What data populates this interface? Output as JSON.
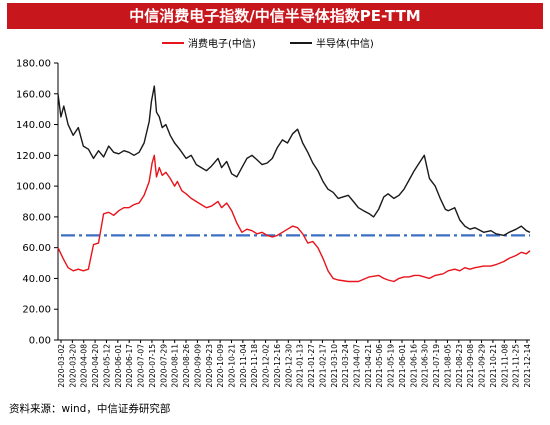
{
  "header": {
    "title": "中信消费电子指数/中信半导体指数PE-TTM"
  },
  "source_note": "资料来源：wind，中信证券研究部",
  "colors": {
    "title_bg": "#c8161d",
    "consumer_electronics": "#e8141c",
    "semiconductor": "#1a1a1a",
    "reference_line": "#3b6fc4"
  },
  "chart_data": {
    "type": "line",
    "title": "中信消费电子指数/中信半导体指数PE-TTM",
    "ylim": [
      0,
      180
    ],
    "yticks": [
      "0.00",
      "20.00",
      "40.00",
      "60.00",
      "80.00",
      "100.00",
      "120.00",
      "140.00",
      "160.00",
      "180.00"
    ],
    "xlim": [
      "2020-03-02",
      "2021-12-14"
    ],
    "x_tick_labels": [
      "2020-03-02",
      "2020-03-20",
      "2020-04-08",
      "2020-04-20",
      "2020-05-12",
      "2020-06-01",
      "2020-06-17",
      "2020-07-07",
      "2020-07-15",
      "2020-07-29",
      "2020-08-11",
      "2020-08-26",
      "2020-09-09",
      "2020-09-23",
      "2020-10-09",
      "2020-10-21",
      "2020-11-04",
      "2020-11-18",
      "2020-12-02",
      "2020-12-16",
      "2020-12-30",
      "2021-01-13",
      "2021-01-27",
      "2021-02-17",
      "2021-03-10",
      "2021-03-24",
      "2021-04-07",
      "2021-04-21",
      "2021-05-06",
      "2021-05-19",
      "2021-06-01",
      "2021-06-16",
      "2021-06-30",
      "2021-07-19",
      "2021-08-05",
      "2021-08-23",
      "2021-09-08",
      "2021-09-29",
      "2021-10-21",
      "2021-11-08",
      "2021-11-25",
      "2021-12-14"
    ],
    "legend": {
      "placement": "top",
      "entries": [
        "消费电子(中信)",
        "半导体(中信)"
      ]
    },
    "grid": false,
    "series": [
      {
        "name": "消费电子(中信)",
        "color": "#e8141c",
        "points": [
          [
            "2020-03-02",
            60
          ],
          [
            "2020-03-09",
            53
          ],
          [
            "2020-03-16",
            47
          ],
          [
            "2020-03-23",
            45
          ],
          [
            "2020-03-30",
            46
          ],
          [
            "2020-04-06",
            45
          ],
          [
            "2020-04-13",
            46
          ],
          [
            "2020-04-20",
            62
          ],
          [
            "2020-04-27",
            63
          ],
          [
            "2020-05-04",
            82
          ],
          [
            "2020-05-11",
            83
          ],
          [
            "2020-05-18",
            81
          ],
          [
            "2020-05-25",
            84
          ],
          [
            "2020-06-01",
            86
          ],
          [
            "2020-06-08",
            86
          ],
          [
            "2020-06-15",
            88
          ],
          [
            "2020-06-22",
            89
          ],
          [
            "2020-06-29",
            94
          ],
          [
            "2020-07-06",
            103
          ],
          [
            "2020-07-10",
            115
          ],
          [
            "2020-07-13",
            120
          ],
          [
            "2020-07-16",
            106
          ],
          [
            "2020-07-20",
            112
          ],
          [
            "2020-07-24",
            107
          ],
          [
            "2020-07-29",
            109
          ],
          [
            "2020-08-04",
            105
          ],
          [
            "2020-08-10",
            100
          ],
          [
            "2020-08-14",
            103
          ],
          [
            "2020-08-20",
            97
          ],
          [
            "2020-08-26",
            95
          ],
          [
            "2020-09-02",
            92
          ],
          [
            "2020-09-09",
            90
          ],
          [
            "2020-09-16",
            88
          ],
          [
            "2020-09-23",
            86
          ],
          [
            "2020-09-30",
            87
          ],
          [
            "2020-10-09",
            90
          ],
          [
            "2020-10-14",
            86
          ],
          [
            "2020-10-21",
            89
          ],
          [
            "2020-10-28",
            84
          ],
          [
            "2020-11-04",
            76
          ],
          [
            "2020-11-11",
            70
          ],
          [
            "2020-11-18",
            72
          ],
          [
            "2020-11-25",
            71
          ],
          [
            "2020-12-02",
            69
          ],
          [
            "2020-12-09",
            70
          ],
          [
            "2020-12-16",
            68
          ],
          [
            "2020-12-23",
            67
          ],
          [
            "2020-12-30",
            68
          ],
          [
            "2021-01-06",
            70
          ],
          [
            "2021-01-13",
            72
          ],
          [
            "2021-01-20",
            74
          ],
          [
            "2021-01-27",
            73
          ],
          [
            "2021-02-03",
            69
          ],
          [
            "2021-02-10",
            63
          ],
          [
            "2021-02-17",
            64
          ],
          [
            "2021-02-24",
            60
          ],
          [
            "2021-03-03",
            53
          ],
          [
            "2021-03-10",
            45
          ],
          [
            "2021-03-17",
            40
          ],
          [
            "2021-03-24",
            39
          ],
          [
            "2021-04-07",
            38
          ],
          [
            "2021-04-21",
            38
          ],
          [
            "2021-05-06",
            41
          ],
          [
            "2021-05-19",
            42
          ],
          [
            "2021-05-26",
            40
          ],
          [
            "2021-06-01",
            39
          ],
          [
            "2021-06-09",
            38
          ],
          [
            "2021-06-16",
            40
          ],
          [
            "2021-06-23",
            41
          ],
          [
            "2021-06-30",
            41
          ],
          [
            "2021-07-07",
            42
          ],
          [
            "2021-07-14",
            42
          ],
          [
            "2021-07-21",
            41
          ],
          [
            "2021-07-28",
            40
          ],
          [
            "2021-08-05",
            42
          ],
          [
            "2021-08-16",
            43
          ],
          [
            "2021-08-23",
            45
          ],
          [
            "2021-09-01",
            46
          ],
          [
            "2021-09-08",
            45
          ],
          [
            "2021-09-15",
            47
          ],
          [
            "2021-09-22",
            46
          ],
          [
            "2021-09-29",
            47
          ],
          [
            "2021-10-11",
            48
          ],
          [
            "2021-10-21",
            48
          ],
          [
            "2021-10-28",
            49
          ],
          [
            "2021-11-08",
            51
          ],
          [
            "2021-11-15",
            53
          ],
          [
            "2021-11-25",
            55
          ],
          [
            "2021-12-02",
            57
          ],
          [
            "2021-12-09",
            56
          ],
          [
            "2021-12-14",
            58
          ]
        ]
      },
      {
        "name": "半导体(中信)",
        "color": "#1a1a1a",
        "points": [
          [
            "2020-03-02",
            160
          ],
          [
            "2020-03-06",
            145
          ],
          [
            "2020-03-10",
            152
          ],
          [
            "2020-03-16",
            140
          ],
          [
            "2020-03-23",
            133
          ],
          [
            "2020-03-30",
            138
          ],
          [
            "2020-04-06",
            126
          ],
          [
            "2020-04-13",
            124
          ],
          [
            "2020-04-20",
            118
          ],
          [
            "2020-04-27",
            123
          ],
          [
            "2020-05-04",
            119
          ],
          [
            "2020-05-11",
            126
          ],
          [
            "2020-05-18",
            122
          ],
          [
            "2020-05-25",
            121
          ],
          [
            "2020-06-01",
            123
          ],
          [
            "2020-06-08",
            122
          ],
          [
            "2020-06-15",
            120
          ],
          [
            "2020-06-22",
            122
          ],
          [
            "2020-06-29",
            128
          ],
          [
            "2020-07-06",
            142
          ],
          [
            "2020-07-09",
            155
          ],
          [
            "2020-07-13",
            165
          ],
          [
            "2020-07-16",
            148
          ],
          [
            "2020-07-20",
            145
          ],
          [
            "2020-07-24",
            138
          ],
          [
            "2020-07-29",
            140
          ],
          [
            "2020-08-04",
            133
          ],
          [
            "2020-08-10",
            128
          ],
          [
            "2020-08-17",
            124
          ],
          [
            "2020-08-26",
            118
          ],
          [
            "2020-09-02",
            120
          ],
          [
            "2020-09-09",
            114
          ],
          [
            "2020-09-16",
            112
          ],
          [
            "2020-09-23",
            110
          ],
          [
            "2020-09-30",
            113
          ],
          [
            "2020-10-09",
            118
          ],
          [
            "2020-10-14",
            112
          ],
          [
            "2020-10-21",
            116
          ],
          [
            "2020-10-28",
            108
          ],
          [
            "2020-11-04",
            106
          ],
          [
            "2020-11-11",
            112
          ],
          [
            "2020-11-18",
            118
          ],
          [
            "2020-11-25",
            120
          ],
          [
            "2020-12-02",
            117
          ],
          [
            "2020-12-09",
            114
          ],
          [
            "2020-12-16",
            115
          ],
          [
            "2020-12-23",
            118
          ],
          [
            "2020-12-30",
            125
          ],
          [
            "2021-01-06",
            130
          ],
          [
            "2021-01-13",
            128
          ],
          [
            "2021-01-20",
            134
          ],
          [
            "2021-01-27",
            137
          ],
          [
            "2021-02-03",
            128
          ],
          [
            "2021-02-10",
            122
          ],
          [
            "2021-02-17",
            115
          ],
          [
            "2021-02-24",
            110
          ],
          [
            "2021-03-03",
            103
          ],
          [
            "2021-03-10",
            98
          ],
          [
            "2021-03-17",
            96
          ],
          [
            "2021-03-24",
            92
          ],
          [
            "2021-04-07",
            94
          ],
          [
            "2021-04-14",
            90
          ],
          [
            "2021-04-21",
            86
          ],
          [
            "2021-04-28",
            84
          ],
          [
            "2021-05-06",
            82
          ],
          [
            "2021-05-12",
            80
          ],
          [
            "2021-05-19",
            85
          ],
          [
            "2021-05-26",
            93
          ],
          [
            "2021-06-01",
            95
          ],
          [
            "2021-06-09",
            92
          ],
          [
            "2021-06-16",
            94
          ],
          [
            "2021-06-23",
            98
          ],
          [
            "2021-06-30",
            104
          ],
          [
            "2021-07-07",
            110
          ],
          [
            "2021-07-14",
            115
          ],
          [
            "2021-07-21",
            120
          ],
          [
            "2021-07-28",
            105
          ],
          [
            "2021-08-05",
            100
          ],
          [
            "2021-08-12",
            92
          ],
          [
            "2021-08-19",
            85
          ],
          [
            "2021-08-23",
            84
          ],
          [
            "2021-09-01",
            86
          ],
          [
            "2021-09-08",
            78
          ],
          [
            "2021-09-15",
            74
          ],
          [
            "2021-09-22",
            72
          ],
          [
            "2021-09-29",
            73
          ],
          [
            "2021-10-11",
            70
          ],
          [
            "2021-10-21",
            71
          ],
          [
            "2021-10-28",
            69
          ],
          [
            "2021-11-08",
            68
          ],
          [
            "2021-11-15",
            70
          ],
          [
            "2021-11-25",
            72
          ],
          [
            "2021-12-02",
            74
          ],
          [
            "2021-12-09",
            71
          ],
          [
            "2021-12-14",
            70
          ]
        ]
      }
    ],
    "reference_line": {
      "y": 68,
      "style": "dash-dot",
      "color": "#3b6fc4"
    }
  }
}
